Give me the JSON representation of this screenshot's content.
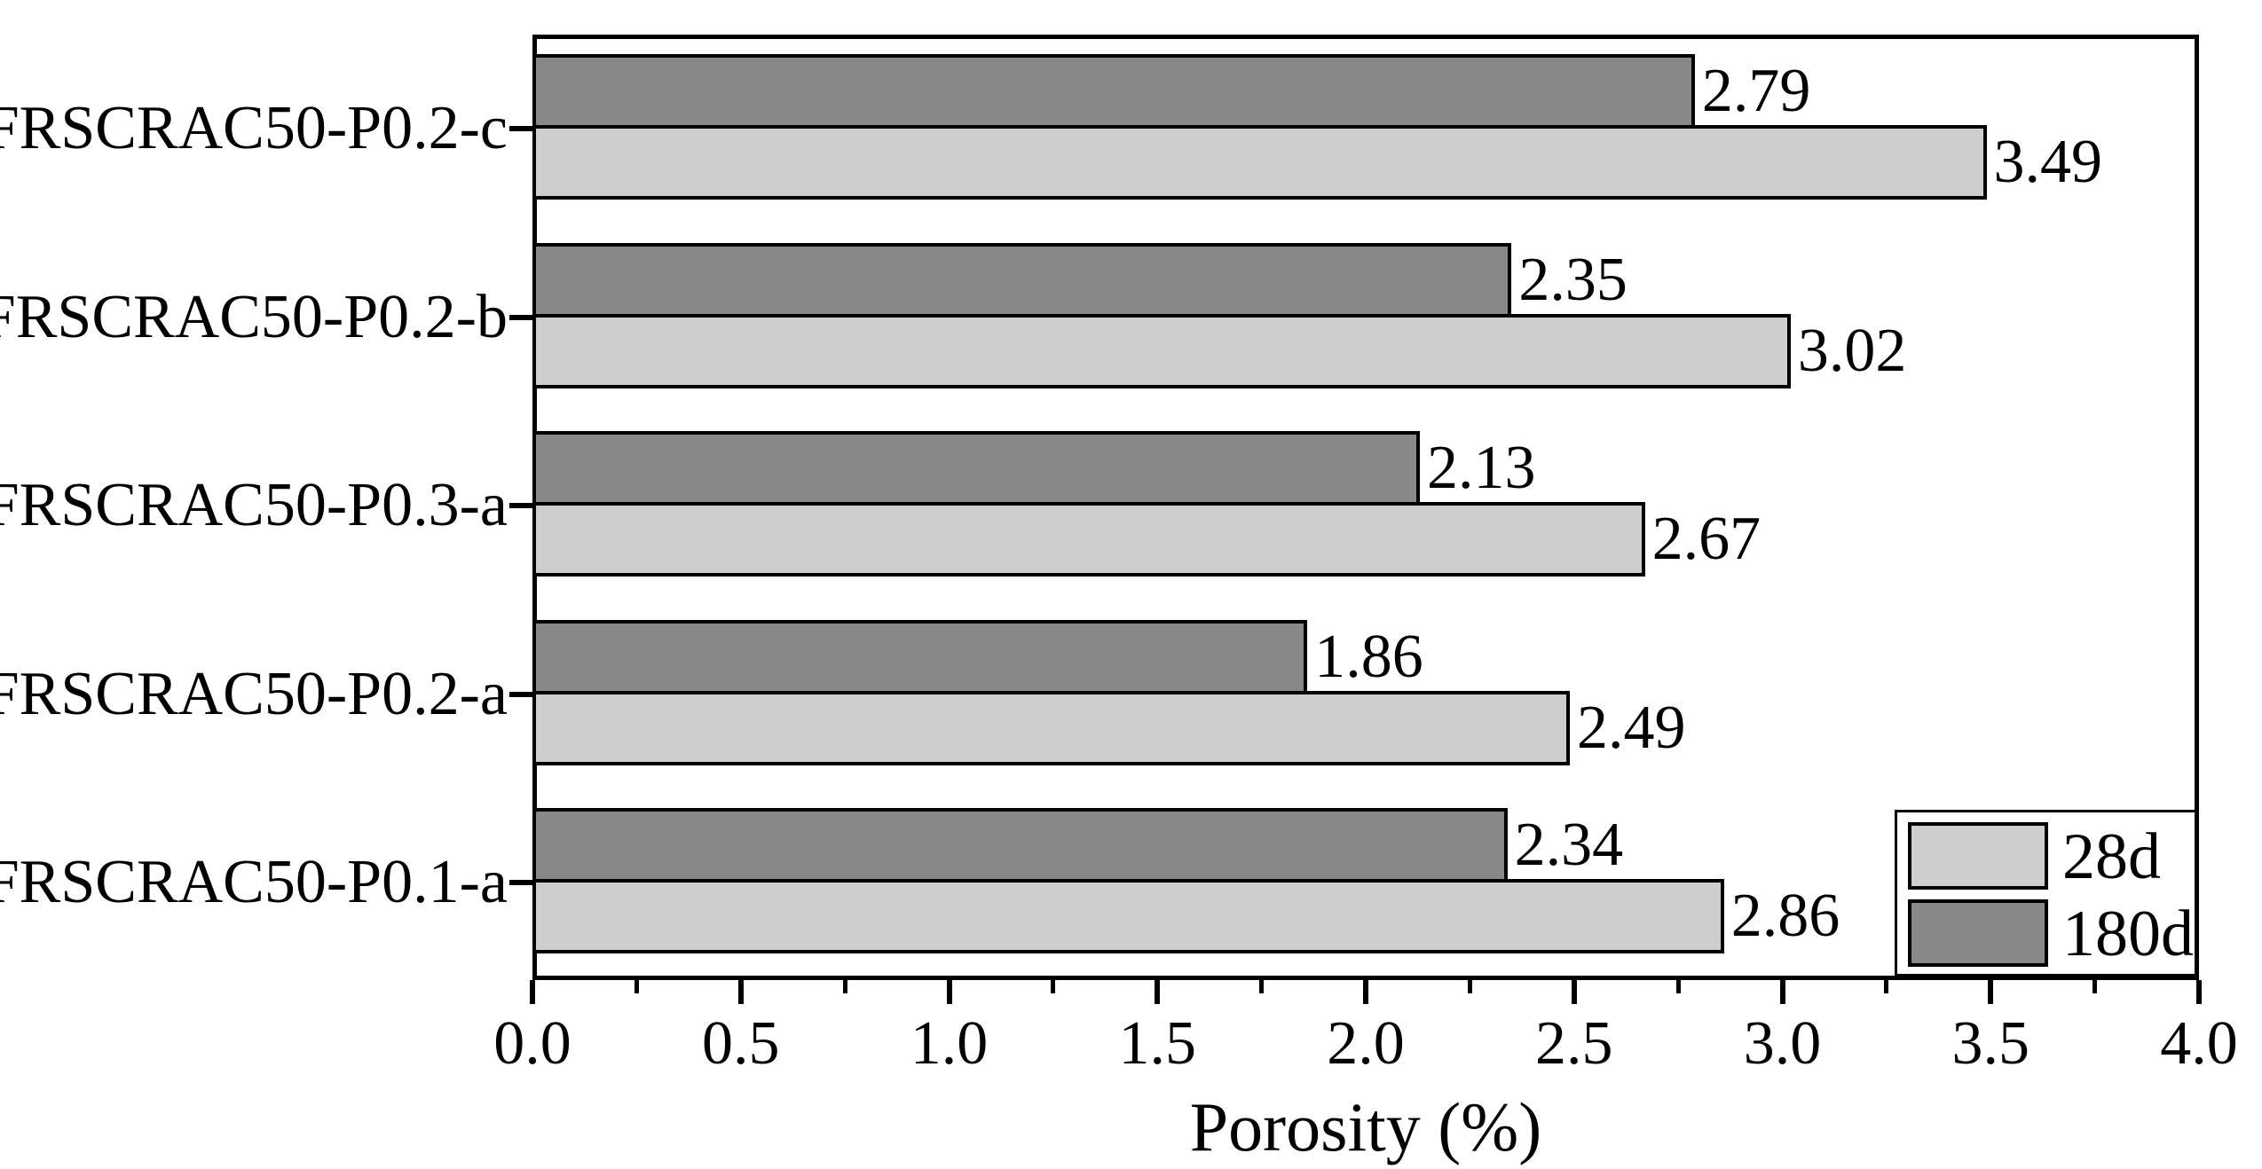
{
  "chart_data": {
    "type": "bar",
    "orientation": "horizontal",
    "title": "",
    "xlabel": "Porosity (%)",
    "ylabel": "",
    "xlim": [
      0.0,
      4.0
    ],
    "x_tick_labels": [
      "0.0",
      "0.5",
      "1.0",
      "1.5",
      "2.0",
      "2.5",
      "3.0",
      "3.5",
      "4.0"
    ],
    "x_major_tick_step": 0.5,
    "x_minor_tick_step": 0.25,
    "grid": false,
    "categories_top_to_bottom": [
      "FRSCRAC50-P0.2-c",
      "FRSCRAC50-P0.2-b",
      "FRSCRAC50-P0.3-a",
      "FRSCRAC50-P0.2-a",
      "FRSCRAC50-P0.1-a"
    ],
    "series": [
      {
        "name": "28d",
        "color": "#cecece",
        "values": [
          3.49,
          3.02,
          2.67,
          2.49,
          2.86
        ]
      },
      {
        "name": "180d",
        "color": "#888888",
        "values": [
          2.79,
          2.35,
          2.13,
          1.86,
          2.34
        ]
      }
    ],
    "group_order_within_category_top_to_bottom": [
      "180d",
      "28d"
    ],
    "value_label_decimals": 2,
    "legend": {
      "position": "lower right",
      "entries_top_to_bottom": [
        "28d",
        "180d"
      ]
    },
    "colors": {
      "bar_edge": "#000000",
      "frame": "#000000",
      "background": "#ffffff",
      "text": "#000000"
    }
  }
}
